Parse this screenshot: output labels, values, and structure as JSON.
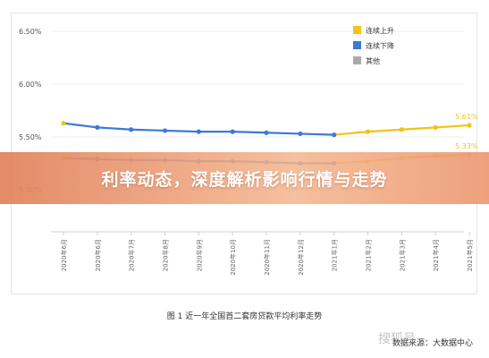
{
  "banner": {
    "text": "利率动态，深度解析影响行情与走势"
  },
  "caption": "图 1  近一年全国首二套房贷款平均利率走势",
  "source": "数据来源：大数据中心",
  "watermark": "搜狐号",
  "colors": {
    "up": "#f0c419",
    "down": "#3c78d8",
    "other": "#aaaaaa"
  },
  "chart_data": {
    "type": "line",
    "title": "",
    "xlabel": "",
    "ylabel": "",
    "ylim": [
      4.9,
      6.6
    ],
    "yticks": [
      "6.50%",
      "6.00%",
      "5.50%",
      "5.00%"
    ],
    "ytick_values": [
      6.5,
      6.0,
      5.5,
      5.0
    ],
    "categories": [
      "2020年6月",
      "2020年6月",
      "2020年7月",
      "2020年8月",
      "2020年9月",
      "2020年10月",
      "2020年11月",
      "2020年12月",
      "2021年1月",
      "2021年2月",
      "2021年3月",
      "2021年4月",
      "2021年5月"
    ],
    "legend": {
      "placement": "top-right",
      "items": [
        {
          "label": "连续上升",
          "color": "#f0c419"
        },
        {
          "label": "连续下降",
          "color": "#3c78d8"
        },
        {
          "label": "其他",
          "color": "#aaaaaa"
        }
      ]
    },
    "series": [
      {
        "values": [
          5.63,
          5.59,
          5.57,
          5.56,
          5.55,
          5.55,
          5.54,
          5.53,
          5.52,
          5.55,
          5.57,
          5.59,
          5.61
        ],
        "end_label": "5.61%"
      },
      {
        "values": [
          5.3,
          5.29,
          5.28,
          5.28,
          5.27,
          5.27,
          5.26,
          5.25,
          5.25,
          5.27,
          5.3,
          5.32,
          5.33
        ],
        "end_label": "5.33%"
      }
    ]
  }
}
